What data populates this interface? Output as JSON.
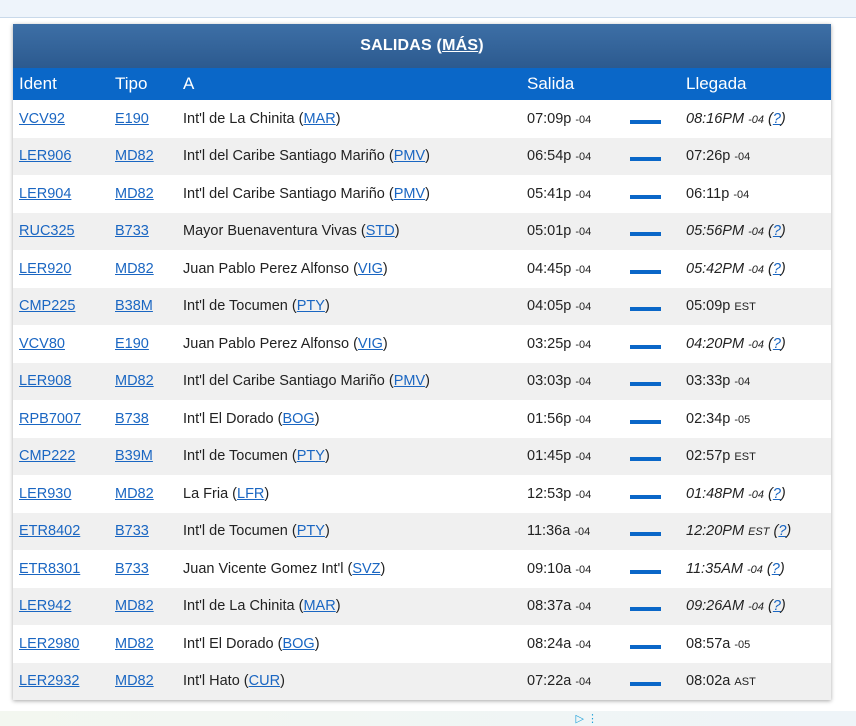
{
  "header": {
    "title": "SALIDAS",
    "more_label": "MÁS"
  },
  "columns": [
    "Ident",
    "Tipo",
    "A",
    "Salida",
    "Llegada"
  ],
  "rows": [
    {
      "ident": "VCV92",
      "tipo": "E190",
      "dest_name": "Int'l de La Chinita",
      "dest_code": "MAR",
      "dep_time": "07:09p",
      "dep_tz": "-04",
      "arr_time": "08:16PM",
      "arr_tz": "-04",
      "estimated": true
    },
    {
      "ident": "LER906",
      "tipo": "MD82",
      "dest_name": "Int'l del Caribe Santiago Mariño",
      "dest_code": "PMV",
      "dep_time": "06:54p",
      "dep_tz": "-04",
      "arr_time": "07:26p",
      "arr_tz": "-04",
      "estimated": false
    },
    {
      "ident": "LER904",
      "tipo": "MD82",
      "dest_name": "Int'l del Caribe Santiago Mariño",
      "dest_code": "PMV",
      "dep_time": "05:41p",
      "dep_tz": "-04",
      "arr_time": "06:11p",
      "arr_tz": "-04",
      "estimated": false
    },
    {
      "ident": "RUC325",
      "tipo": "B733",
      "dest_name": "Mayor Buenaventura Vivas",
      "dest_code": "STD",
      "dep_time": "05:01p",
      "dep_tz": "-04",
      "arr_time": "05:56PM",
      "arr_tz": "-04",
      "estimated": true
    },
    {
      "ident": "LER920",
      "tipo": "MD82",
      "dest_name": "Juan Pablo Perez Alfonso",
      "dest_code": "VIG",
      "dep_time": "04:45p",
      "dep_tz": "-04",
      "arr_time": "05:42PM",
      "arr_tz": "-04",
      "estimated": true
    },
    {
      "ident": "CMP225",
      "tipo": "B38M",
      "dest_name": "Int'l de Tocumen",
      "dest_code": "PTY",
      "dep_time": "04:05p",
      "dep_tz": "-04",
      "arr_time": "05:09p",
      "arr_tz": "EST",
      "estimated": false
    },
    {
      "ident": "VCV80",
      "tipo": "E190",
      "dest_name": "Juan Pablo Perez Alfonso",
      "dest_code": "VIG",
      "dep_time": "03:25p",
      "dep_tz": "-04",
      "arr_time": "04:20PM",
      "arr_tz": "-04",
      "estimated": true
    },
    {
      "ident": "LER908",
      "tipo": "MD82",
      "dest_name": "Int'l del Caribe Santiago Mariño",
      "dest_code": "PMV",
      "dep_time": "03:03p",
      "dep_tz": "-04",
      "arr_time": "03:33p",
      "arr_tz": "-04",
      "estimated": false
    },
    {
      "ident": "RPB7007",
      "tipo": "B738",
      "dest_name": "Int'l El Dorado",
      "dest_code": "BOG",
      "dep_time": "01:56p",
      "dep_tz": "-04",
      "arr_time": "02:34p",
      "arr_tz": "-05",
      "estimated": false
    },
    {
      "ident": "CMP222",
      "tipo": "B39M",
      "dest_name": "Int'l de Tocumen",
      "dest_code": "PTY",
      "dep_time": "01:45p",
      "dep_tz": "-04",
      "arr_time": "02:57p",
      "arr_tz": "EST",
      "estimated": false
    },
    {
      "ident": "LER930",
      "tipo": "MD82",
      "dest_name": "La Fria",
      "dest_code": "LFR",
      "dep_time": "12:53p",
      "dep_tz": "-04",
      "arr_time": "01:48PM",
      "arr_tz": "-04",
      "estimated": true
    },
    {
      "ident": "ETR8402",
      "tipo": "B733",
      "dest_name": "Int'l de Tocumen",
      "dest_code": "PTY",
      "dep_time": "11:36a",
      "dep_tz": "-04",
      "arr_time": "12:20PM",
      "arr_tz": "EST",
      "estimated": true
    },
    {
      "ident": "ETR8301",
      "tipo": "B733",
      "dest_name": "Juan Vicente Gomez Int'l",
      "dest_code": "SVZ",
      "dep_time": "09:10a",
      "dep_tz": "-04",
      "arr_time": "11:35AM",
      "arr_tz": "-04",
      "estimated": true
    },
    {
      "ident": "LER942",
      "tipo": "MD82",
      "dest_name": "Int'l de La Chinita",
      "dest_code": "MAR",
      "dep_time": "08:37a",
      "dep_tz": "-04",
      "arr_time": "09:26AM",
      "arr_tz": "-04",
      "estimated": true
    },
    {
      "ident": "LER2980",
      "tipo": "MD82",
      "dest_name": "Int'l El Dorado",
      "dest_code": "BOG",
      "dep_time": "08:24a",
      "dep_tz": "-04",
      "arr_time": "08:57a",
      "arr_tz": "-05",
      "estimated": false
    },
    {
      "ident": "LER2932",
      "tipo": "MD82",
      "dest_name": "Int'l Hato",
      "dest_code": "CUR",
      "dep_time": "07:22a",
      "dep_tz": "-04",
      "arr_time": "08:02a",
      "arr_tz": "AST",
      "estimated": false
    }
  ],
  "estimate_marker": "?",
  "icons": {
    "ad_play": "play-triangle-icon",
    "ad_menu": "kebab-menu-icon"
  },
  "colors": {
    "header_bar": "#2c5a8f",
    "column_bar": "#0a67c8",
    "link": "#1a66c2"
  }
}
